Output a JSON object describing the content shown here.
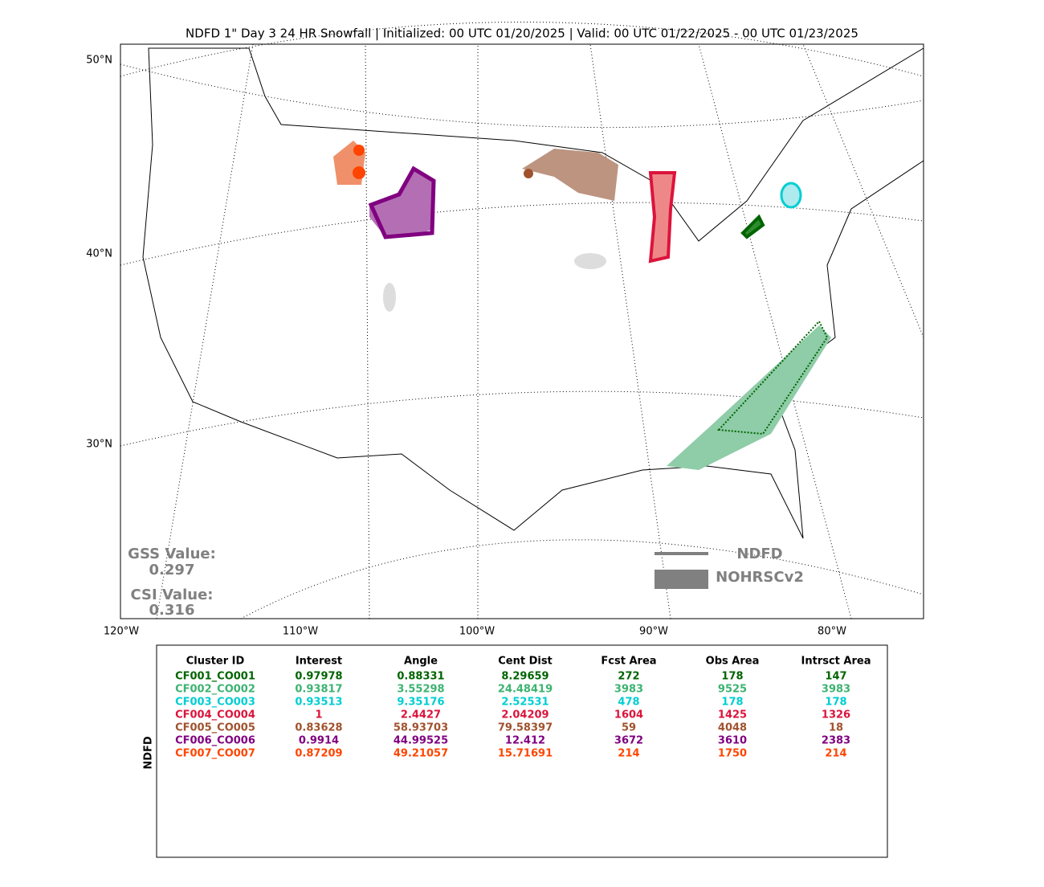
{
  "title": "NDFD 1\" Day 3 24 HR Snowfall | Initialized: 00 UTC 01/20/2025 | Valid: 00 UTC 01/22/2025 - 00 UTC 01/23/2025",
  "map": {
    "lat_labels": [
      "50°N",
      "40°N",
      "30°N"
    ],
    "lon_labels": [
      "120°W",
      "110°W",
      "100°W",
      "90°W",
      "80°W"
    ]
  },
  "scores": {
    "gss_label": "GSS Value:",
    "gss": "0.297",
    "csi_label": "CSI Value:",
    "csi": "0.316"
  },
  "legend": {
    "items": [
      "NDFD",
      "NOHRSCv2"
    ]
  },
  "table": {
    "side_label": "NDFD",
    "columns": [
      "Cluster ID",
      "Interest",
      "Angle",
      "Cent Dist",
      "Fcst Area",
      "Obs Area",
      "Intrsct Area"
    ],
    "rows": [
      {
        "color": "#006400",
        "cells": [
          "CF001_CO001",
          "0.97978",
          "0.88331",
          "8.29659",
          "272",
          "178",
          "147"
        ]
      },
      {
        "color": "#3cb371",
        "cells": [
          "CF002_CO002",
          "0.93817",
          "3.55298",
          "24.48419",
          "3983",
          "9525",
          "3983"
        ]
      },
      {
        "color": "#00ced1",
        "cells": [
          "CF003_CO003",
          "0.93513",
          "9.35176",
          "2.52531",
          "478",
          "178",
          "178"
        ]
      },
      {
        "color": "#dc143c",
        "cells": [
          "CF004_CO004",
          "1",
          "2.4427",
          "2.04209",
          "1604",
          "1425",
          "1326"
        ]
      },
      {
        "color": "#a0522d",
        "cells": [
          "CF005_CO005",
          "0.83628",
          "58.93703",
          "79.58397",
          "59",
          "4048",
          "18"
        ]
      },
      {
        "color": "#800080",
        "cells": [
          "CF006_CO006",
          "0.9914",
          "44.99525",
          "12.412",
          "3672",
          "3610",
          "2383"
        ]
      },
      {
        "color": "#ff4500",
        "cells": [
          "CF007_CO007",
          "0.87209",
          "49.21057",
          "15.71691",
          "214",
          "1750",
          "214"
        ]
      }
    ]
  }
}
